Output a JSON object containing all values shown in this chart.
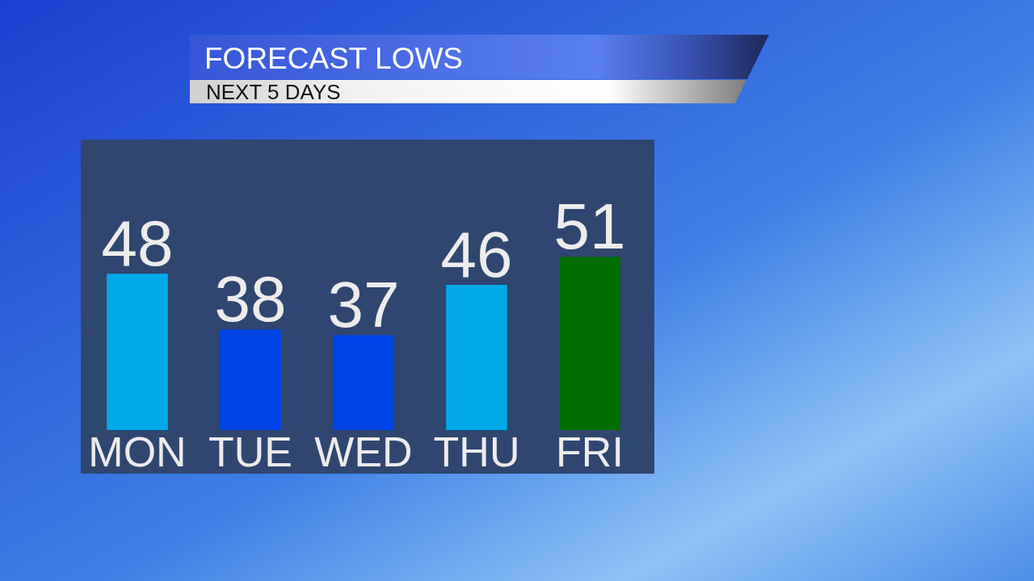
{
  "chart_data": {
    "type": "bar",
    "title": "FORECAST LOWS",
    "subtitle": "NEXT 5 DAYS",
    "categories": [
      "MON",
      "TUE",
      "WED",
      "THU",
      "FRI"
    ],
    "values": [
      48,
      38,
      37,
      46,
      51
    ],
    "colors": [
      "#00aae8",
      "#0044e8",
      "#0044e8",
      "#00aae8",
      "#006e00"
    ],
    "ylim": [
      20,
      72
    ],
    "tick_labels": "x",
    "data_labels": true
  }
}
